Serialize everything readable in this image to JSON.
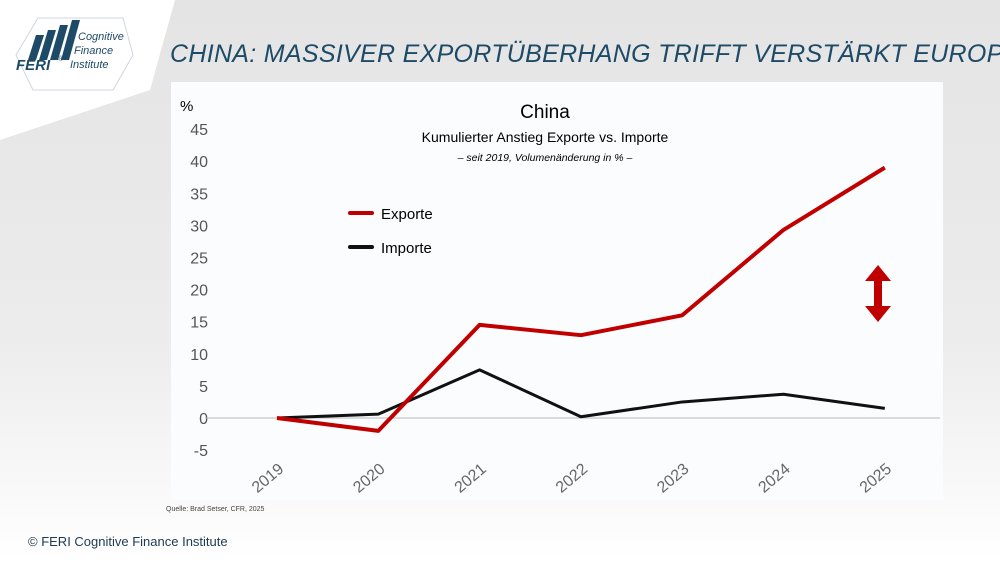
{
  "header": {
    "title": "CHINA: MASSIVER EXPORTÜBERHANG TRIFFT VERSTÄRKT EUROPA"
  },
  "logo": {
    "brand": "FERI",
    "registered": "®",
    "line1": "Cognitive",
    "line2": "Finance",
    "line3": "Institute"
  },
  "chart_data": {
    "type": "line",
    "title": "China",
    "subtitle": "Kumulierter Anstieg Exporte vs. Importe",
    "note": "– seit 2019, Volumenänderung in % –",
    "ylabel": "%",
    "x": [
      "2019",
      "2020",
      "2021",
      "2022",
      "2023",
      "2024",
      "2025"
    ],
    "yticks": [
      -5,
      0,
      5,
      10,
      15,
      20,
      25,
      30,
      35,
      40,
      45
    ],
    "ylim": [
      -5,
      45
    ],
    "grid": false,
    "legend_placement": "upper-left",
    "series": [
      {
        "name": "Exporte",
        "color": "#c00000",
        "values": [
          0,
          -2,
          14.5,
          12.9,
          16,
          29.3,
          39
        ]
      },
      {
        "name": "Importe",
        "color": "#111111",
        "values": [
          0,
          0.6,
          7.5,
          0.2,
          2.5,
          3.7,
          1.5
        ]
      }
    ],
    "annotation": {
      "type": "double-arrow",
      "color": "#c00000",
      "at": "2025"
    }
  },
  "footer": {
    "source": "Quelle: Brad Setser, CFR, 2025",
    "copyright": "© FERI Cognitive Finance Institute"
  }
}
